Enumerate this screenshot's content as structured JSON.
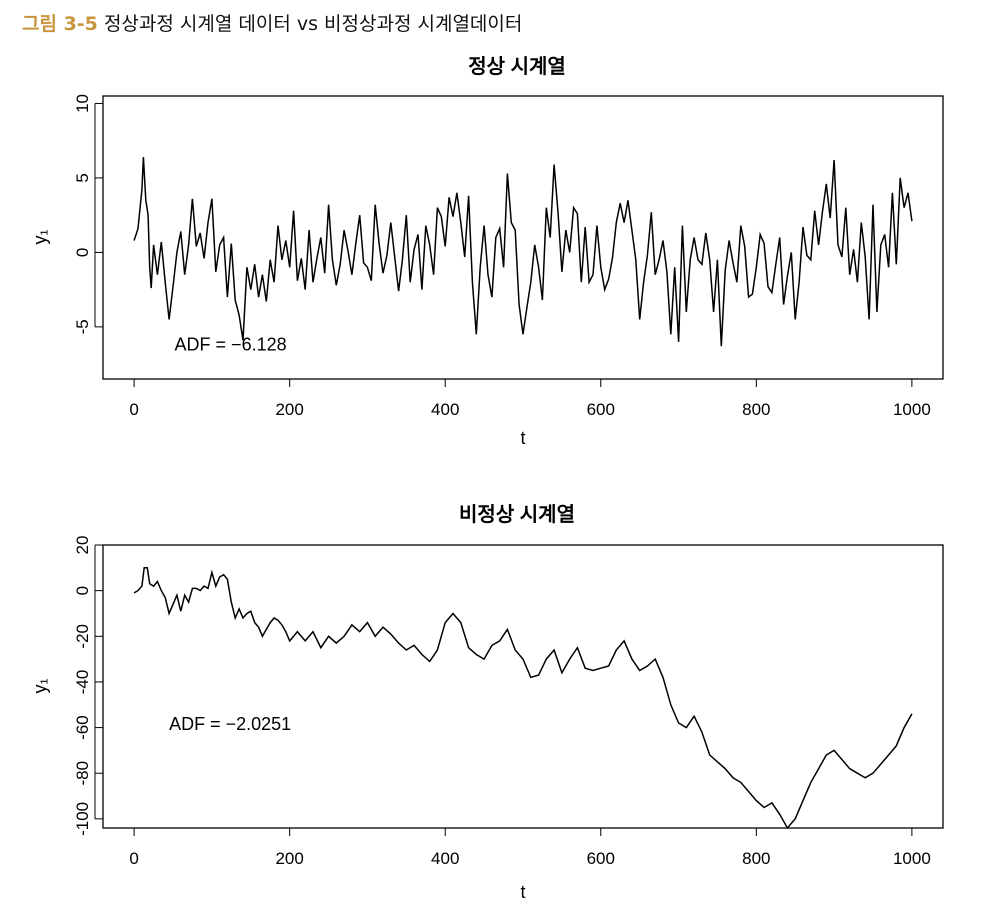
{
  "caption": {
    "number": "그림 3-5",
    "text": "정상과정 시계열 데이터 vs 비정상과정 시계열데이터"
  },
  "colors": {
    "caption_accent": "#c8963e",
    "line": "#000000",
    "frame": "#000000"
  },
  "chart_data": [
    {
      "type": "line",
      "title": "정상 시계열",
      "xlabel": "t",
      "ylabel": "y₁",
      "xlim": [
        -40,
        1040
      ],
      "ylim": [
        -8.5,
        10.5
      ],
      "xticks": [
        0,
        200,
        400,
        600,
        800,
        1000
      ],
      "xtick_labels": [
        "0",
        "200",
        "400",
        "600",
        "800",
        "1000"
      ],
      "yticks": [
        -5,
        0,
        5,
        10
      ],
      "ytick_labels": [
        "-5",
        "0",
        "5",
        "10"
      ],
      "annotation": {
        "text": "ADF = −6.128",
        "x": 52,
        "y": -6.6
      },
      "grid": false,
      "series": [
        {
          "x": [
            0,
            5,
            10,
            12,
            15,
            18,
            20,
            22,
            25,
            30,
            35,
            40,
            45,
            50,
            55,
            60,
            65,
            70,
            75,
            80,
            85,
            90,
            95,
            100,
            105,
            110,
            115,
            120,
            125,
            130,
            135,
            140,
            145,
            150,
            155,
            160,
            165,
            170,
            175,
            180,
            185,
            190,
            195,
            200,
            205,
            210,
            215,
            220,
            225,
            230,
            235,
            240,
            245,
            250,
            255,
            260,
            265,
            270,
            275,
            280,
            285,
            290,
            295,
            300,
            305,
            310,
            315,
            320,
            325,
            330,
            335,
            340,
            345,
            350,
            355,
            360,
            365,
            370,
            375,
            380,
            385,
            390,
            395,
            400,
            405,
            410,
            415,
            420,
            425,
            430,
            435,
            440,
            445,
            450,
            455,
            460,
            465,
            470,
            475,
            480,
            485,
            490,
            495,
            500,
            505,
            510,
            515,
            520,
            525,
            530,
            535,
            540,
            545,
            550,
            555,
            560,
            565,
            570,
            575,
            580,
            585,
            590,
            595,
            600,
            605,
            610,
            615,
            620,
            625,
            630,
            635,
            640,
            645,
            650,
            655,
            660,
            665,
            670,
            675,
            680,
            685,
            690,
            695,
            700,
            705,
            710,
            715,
            720,
            725,
            730,
            735,
            740,
            745,
            750,
            755,
            760,
            765,
            770,
            775,
            780,
            785,
            790,
            795,
            800,
            805,
            810,
            815,
            820,
            825,
            830,
            835,
            840,
            845,
            850,
            855,
            860,
            865,
            870,
            875,
            880,
            885,
            890,
            895,
            900,
            905,
            910,
            915,
            920,
            925,
            930,
            935,
            940,
            945,
            950,
            955,
            960,
            965,
            970,
            975,
            980,
            985,
            990,
            995,
            1000
          ],
          "y": [
            0.8,
            1.6,
            4.2,
            6.4,
            3.5,
            2.5,
            -1.0,
            -2.4,
            0.5,
            -1.5,
            0.7,
            -2.0,
            -4.5,
            -2.3,
            0.0,
            1.4,
            -1.5,
            0.5,
            3.6,
            0.4,
            1.3,
            -0.4,
            2.0,
            3.6,
            -1.3,
            0.5,
            1.0,
            -3.0,
            0.6,
            -3.2,
            -4.2,
            -5.9,
            -1.0,
            -2.5,
            -0.8,
            -3.0,
            -1.5,
            -3.3,
            -0.5,
            -2.0,
            1.8,
            -0.5,
            0.8,
            -1.0,
            2.8,
            -1.9,
            -0.4,
            -2.5,
            1.5,
            -2.0,
            -0.4,
            1.0,
            -1.4,
            3.2,
            -0.5,
            -2.2,
            -0.8,
            1.5,
            0.1,
            -1.5,
            0.6,
            2.5,
            -0.7,
            -1.0,
            -1.9,
            3.2,
            0.6,
            -1.4,
            -0.2,
            2.0,
            -0.3,
            -2.6,
            -0.5,
            2.5,
            -2.0,
            0.2,
            1.2,
            -2.5,
            1.8,
            0.5,
            -1.5,
            3.0,
            2.4,
            0.4,
            3.7,
            2.4,
            4.0,
            2.0,
            -0.3,
            3.8,
            -2.0,
            -5.5,
            -1.0,
            1.8,
            -1.5,
            -3.0,
            1.0,
            1.6,
            -1.0,
            5.3,
            2.0,
            1.5,
            -3.5,
            -5.5,
            -3.7,
            -2.0,
            0.5,
            -1.0,
            -3.2,
            3.0,
            1.0,
            5.9,
            2.7,
            -1.3,
            1.5,
            0.0,
            3.0,
            2.6,
            -2.0,
            1.7,
            -2.0,
            -1.5,
            1.8,
            -1.0,
            -2.5,
            -1.8,
            -0.4,
            2.0,
            3.3,
            2.0,
            3.5,
            1.5,
            -0.5,
            -4.5,
            -2.0,
            -0.2,
            2.7,
            -1.5,
            -0.5,
            0.8,
            -1.3,
            -5.5,
            -1.0,
            -6.0,
            1.8,
            -4.0,
            -0.5,
            1.0,
            -0.5,
            -0.8,
            1.3,
            -0.5,
            -4.0,
            -0.5,
            -6.3,
            -1.2,
            0.8,
            -0.7,
            -2.0,
            1.8,
            0.4,
            -3.0,
            -2.8,
            -1.0,
            1.2,
            0.6,
            -2.3,
            -2.7,
            -0.8,
            1.0,
            -3.5,
            -1.6,
            0.0,
            -4.5,
            -2.0,
            1.7,
            -0.2,
            -0.5,
            2.8,
            0.5,
            2.7,
            4.6,
            2.3,
            6.2,
            0.5,
            -0.3,
            3.0,
            -1.5,
            0.2,
            -2.0,
            2.0,
            -0.3,
            -4.5,
            3.2,
            -4.0,
            0.5,
            1.2,
            -1.0,
            4.0,
            -0.8,
            5.0,
            3.0,
            4.0,
            2.1
          ]
        }
      ]
    },
    {
      "type": "line",
      "title": "비정상 시계열",
      "xlabel": "t",
      "ylabel": "y₁",
      "xlim": [
        -40,
        1040
      ],
      "ylim": [
        -104,
        20
      ],
      "xticks": [
        0,
        200,
        400,
        600,
        800,
        1000
      ],
      "xtick_labels": [
        "0",
        "200",
        "400",
        "600",
        "800",
        "1000"
      ],
      "yticks": [
        -100,
        -80,
        -60,
        -40,
        -20,
        0,
        20
      ],
      "ytick_labels": [
        "-100",
        "-80",
        "-60",
        "-40",
        "-20",
        "0",
        "20"
      ],
      "annotation": {
        "text": "ADF = −2.0251",
        "x": 45,
        "y": -61
      },
      "grid": false,
      "series": [
        {
          "x": [
            0,
            5,
            10,
            13,
            17,
            20,
            25,
            30,
            35,
            40,
            45,
            50,
            55,
            60,
            65,
            70,
            75,
            80,
            85,
            90,
            95,
            100,
            105,
            110,
            115,
            120,
            125,
            130,
            135,
            140,
            145,
            150,
            155,
            160,
            165,
            170,
            175,
            180,
            185,
            190,
            195,
            200,
            210,
            220,
            230,
            240,
            250,
            260,
            270,
            280,
            290,
            300,
            310,
            320,
            330,
            340,
            350,
            360,
            370,
            380,
            390,
            400,
            410,
            420,
            430,
            440,
            450,
            460,
            470,
            480,
            490,
            500,
            510,
            520,
            530,
            540,
            550,
            560,
            570,
            580,
            590,
            600,
            610,
            620,
            630,
            640,
            650,
            660,
            670,
            680,
            690,
            700,
            710,
            720,
            730,
            740,
            750,
            760,
            770,
            780,
            790,
            800,
            810,
            820,
            830,
            840,
            850,
            855,
            860,
            870,
            880,
            890,
            900,
            910,
            920,
            930,
            940,
            950,
            960,
            970,
            980,
            990,
            1000
          ],
          "y": [
            -1,
            0,
            2,
            10,
            10,
            3,
            2,
            4,
            0,
            -3,
            -10,
            -6,
            -2,
            -9,
            -2,
            -5,
            1,
            1,
            0,
            2,
            1,
            8,
            2,
            6,
            7,
            5,
            -5,
            -12,
            -8,
            -12,
            -10,
            -9,
            -14,
            -16,
            -20,
            -17,
            -14,
            -12,
            -13,
            -15,
            -18,
            -22,
            -18,
            -22,
            -18,
            -25,
            -20,
            -23,
            -20,
            -15,
            -18,
            -14,
            -20,
            -16,
            -19,
            -23,
            -26,
            -24,
            -28,
            -31,
            -26,
            -14,
            -10,
            -14,
            -25,
            -28,
            -30,
            -24,
            -22,
            -17,
            -26,
            -30,
            -38,
            -37,
            -30,
            -26,
            -36,
            -30,
            -25,
            -34,
            -35,
            -34,
            -33,
            -26,
            -22,
            -30,
            -35,
            -33,
            -30,
            -38,
            -50,
            -58,
            -60,
            -55,
            -62,
            -72,
            -75,
            -78,
            -82,
            -84,
            -88,
            -92,
            -95,
            -93,
            -98,
            -104,
            -100,
            -96,
            -92,
            -84,
            -78,
            -72,
            -70,
            -74,
            -78,
            -80,
            -82,
            -80,
            -76,
            -72,
            -68,
            -60,
            -54
          ]
        }
      ]
    }
  ]
}
